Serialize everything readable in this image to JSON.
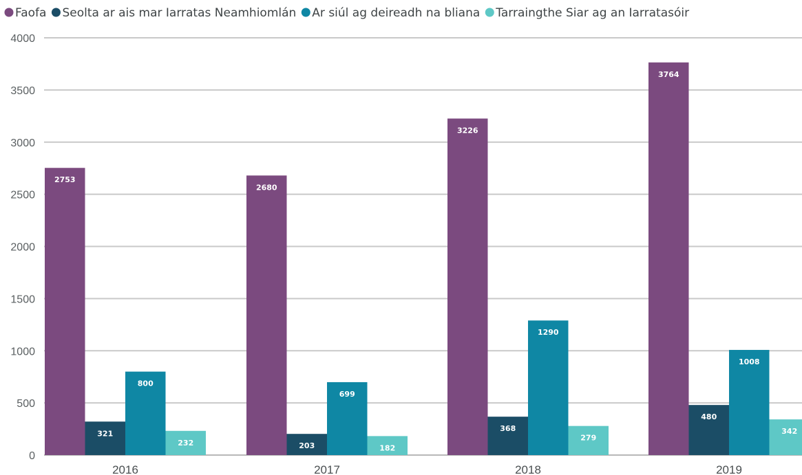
{
  "chart_data": {
    "type": "bar",
    "title": "",
    "xlabel": "",
    "ylabel": "",
    "categories": [
      "2016",
      "2017",
      "2018",
      "2019"
    ],
    "series": [
      {
        "name": "Faofa",
        "color": "#7b4a7f",
        "values": [
          2753,
          2680,
          3226,
          3764
        ]
      },
      {
        "name": "Seolta ar ais mar Iarratas Neamhiomlán",
        "color": "#1b4d66",
        "values": [
          321,
          203,
          368,
          480
        ]
      },
      {
        "name": "Ar siúl ag deireadh na bliana",
        "color": "#0f87a4",
        "values": [
          800,
          699,
          1290,
          1008
        ]
      },
      {
        "name": "Tarraingthe Siar ag an Iarratasóir",
        "color": "#5ec8c6",
        "values": [
          232,
          182,
          279,
          342
        ]
      }
    ],
    "ylim": [
      0,
      4000
    ],
    "yticks": [
      0,
      500,
      1000,
      1500,
      2000,
      2500,
      3000,
      3500,
      4000
    ],
    "grid": true,
    "legend_position": "top-left",
    "data_labels": true
  }
}
